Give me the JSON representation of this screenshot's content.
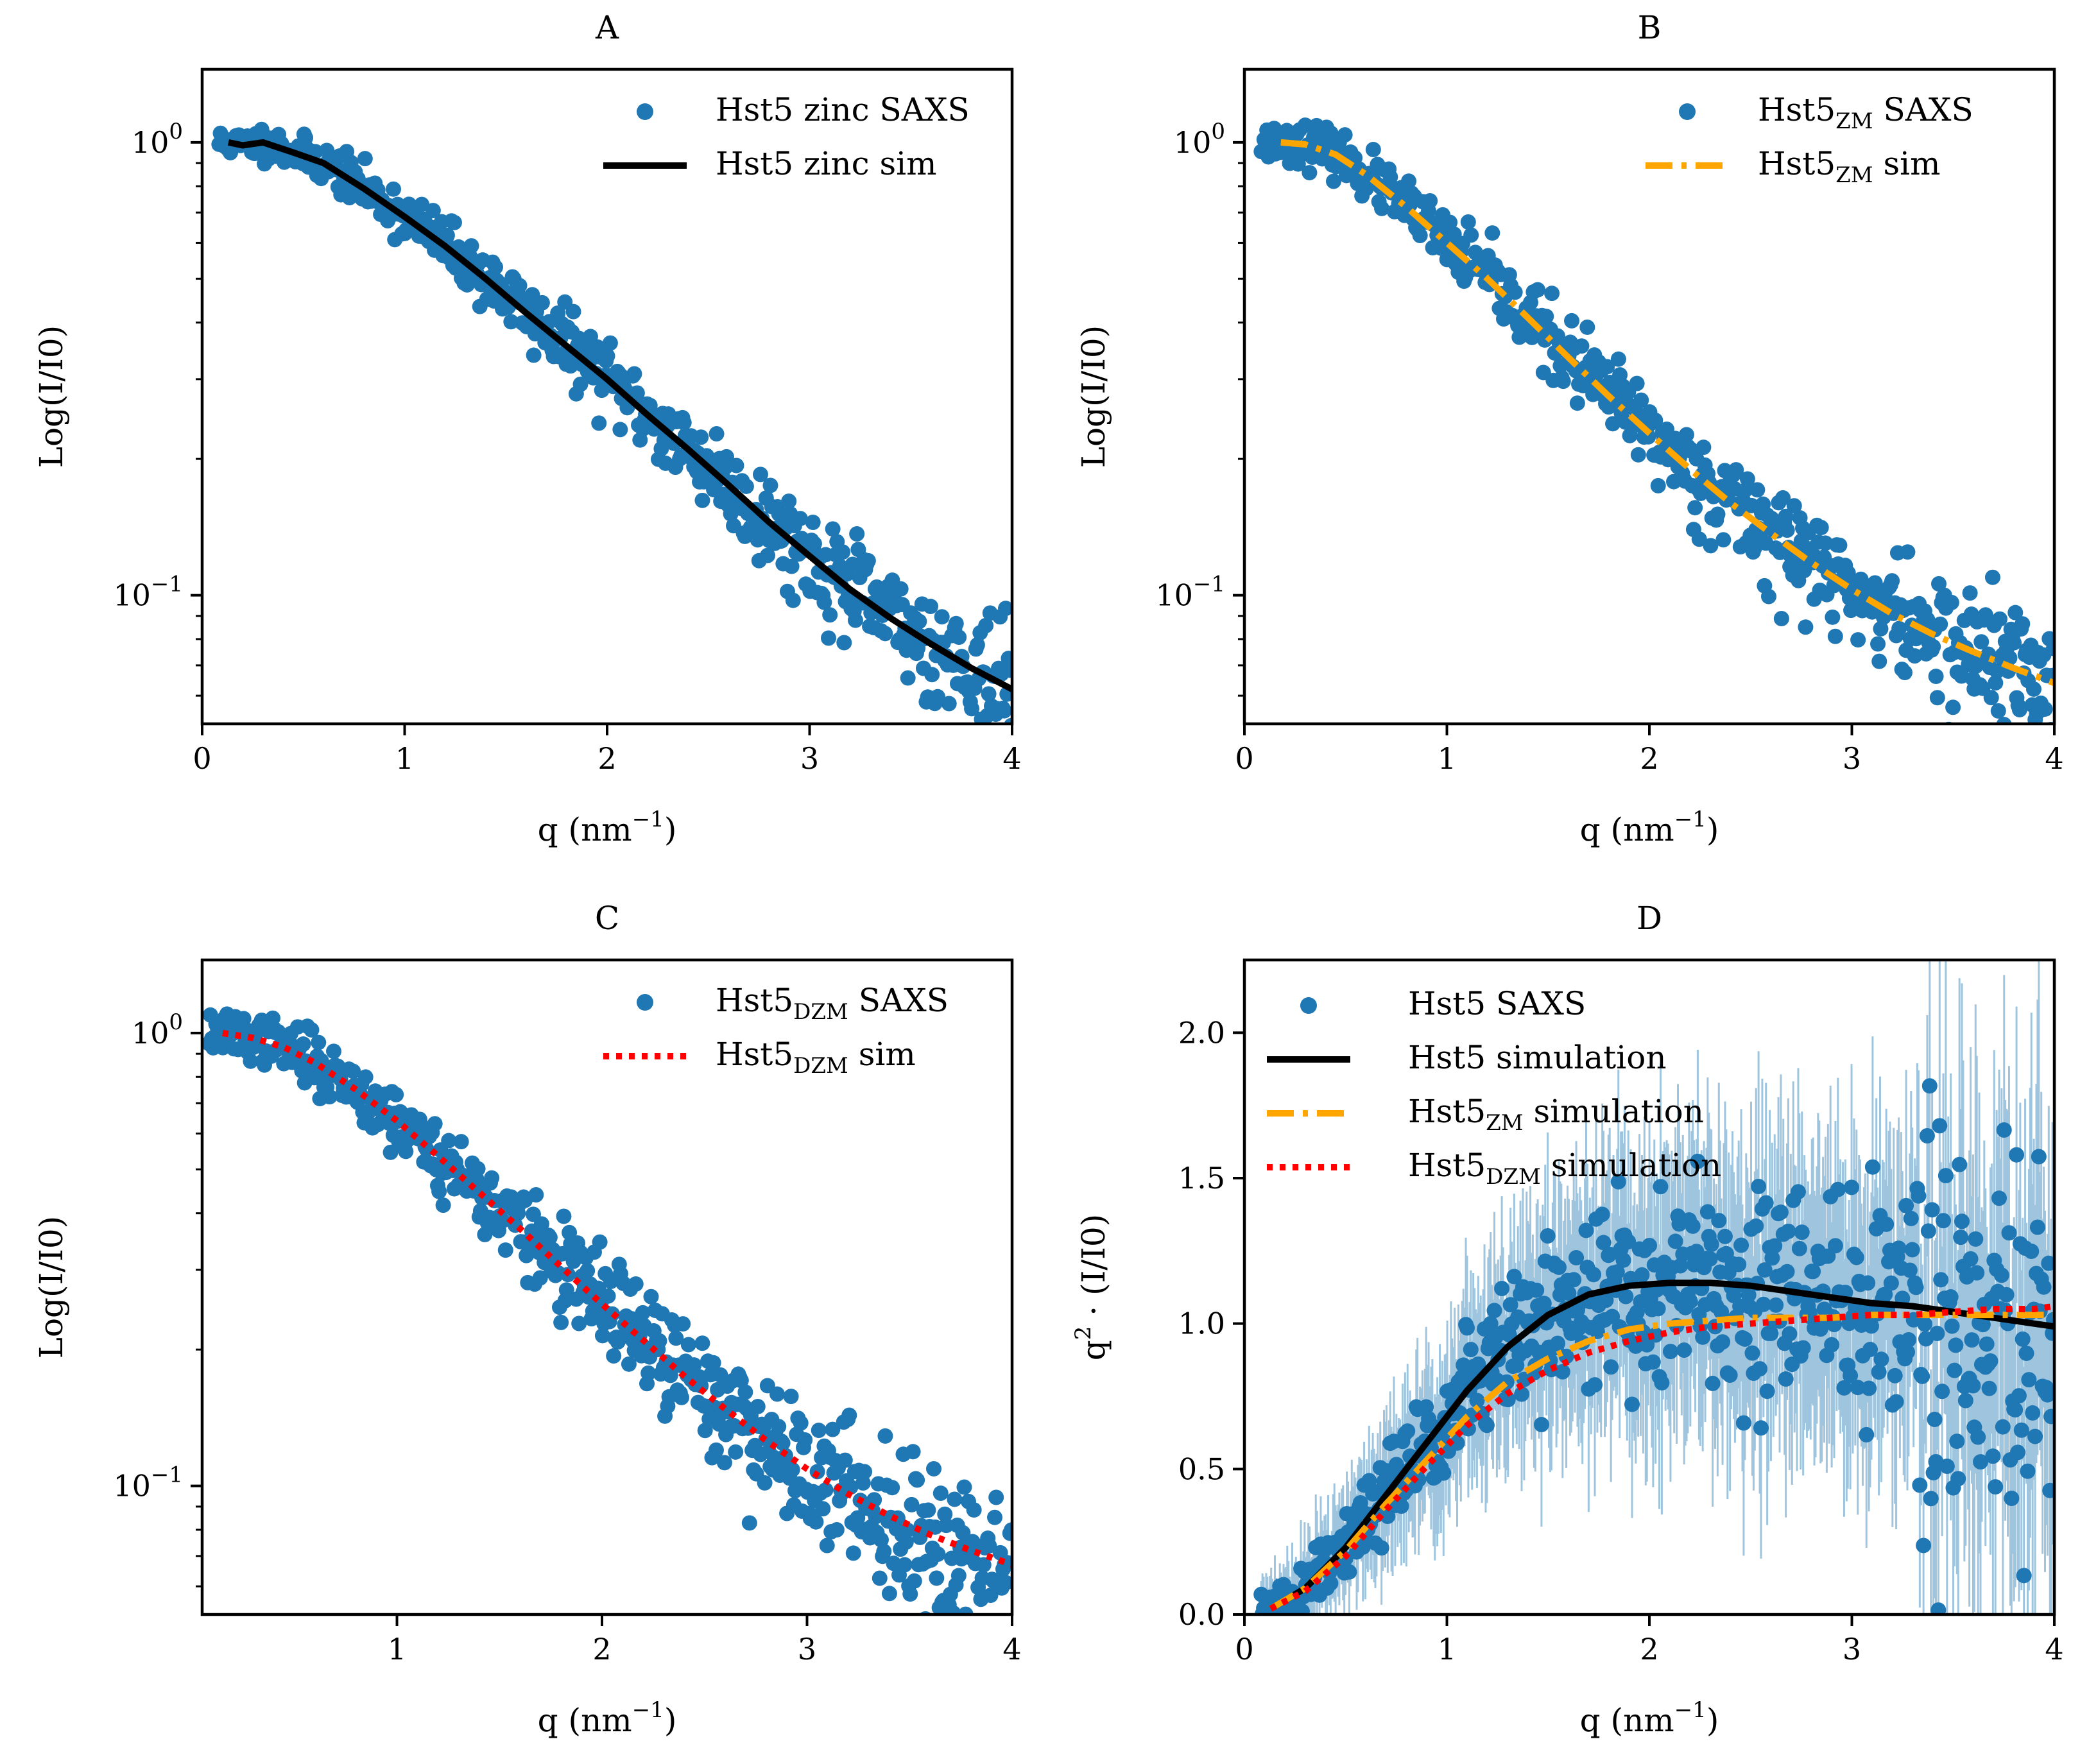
{
  "figure": {
    "panel_count": 4
  },
  "chart_data": [
    {
      "id": "A",
      "type": "scatter",
      "title": "A",
      "xlabel": "q (nm",
      "xlabel_sup": "−1",
      "xlabel_end": ")",
      "ylabel": "Log(I/I0)",
      "yscale": "log",
      "xlim": [
        0,
        4
      ],
      "ylim": [
        0.052,
        1.45
      ],
      "xticks": [
        0,
        1,
        2,
        3,
        4
      ],
      "xtick_labels": [
        "0",
        "1",
        "2",
        "3",
        "4"
      ],
      "yticks_major": [
        0.1,
        1
      ],
      "ytick_labels": [
        {
          "value": 1,
          "base": "10",
          "exp": "0"
        },
        {
          "value": 0.1,
          "base": "10",
          "exp": "−1"
        }
      ],
      "legend": [
        {
          "label": "Hst5 zinc SAXS",
          "kind": "scatter",
          "color": "#1f77b4"
        },
        {
          "label": "Hst5 zinc sim",
          "kind": "line",
          "color": "#000000",
          "dash": "solid"
        }
      ],
      "series": [
        {
          "name": "Hst5 zinc SAXS",
          "kind": "scatter",
          "color": "#1f77b4",
          "model": "zinc",
          "noise": 0.11,
          "seed": 11,
          "count": 560
        },
        {
          "name": "Hst5 zinc sim",
          "kind": "line",
          "color": "#000000",
          "dash": "solid",
          "model": "zinc",
          "x": [
            0.13,
            0.2,
            0.3,
            0.45,
            0.6,
            0.8,
            1.0,
            1.2,
            1.4,
            1.6,
            1.8,
            2.0,
            2.2,
            2.4,
            2.6,
            2.8,
            3.0,
            3.2,
            3.4,
            3.6,
            3.8,
            4.0
          ],
          "y": [
            1.0,
            0.985,
            1.0,
            0.95,
            0.9,
            0.79,
            0.685,
            0.59,
            0.5,
            0.42,
            0.355,
            0.3,
            0.25,
            0.21,
            0.175,
            0.145,
            0.122,
            0.103,
            0.089,
            0.078,
            0.069,
            0.062
          ]
        }
      ]
    },
    {
      "id": "B",
      "type": "scatter",
      "title": "B",
      "xlabel": "q (nm",
      "xlabel_sup": "−1",
      "xlabel_end": ")",
      "ylabel": "Log(I/I0)",
      "yscale": "log",
      "xlim": [
        0,
        4
      ],
      "ylim": [
        0.052,
        1.45
      ],
      "xticks": [
        0,
        1,
        2,
        3,
        4
      ],
      "xtick_labels": [
        "0",
        "1",
        "2",
        "3",
        "4"
      ],
      "yticks_major": [
        0.1,
        1
      ],
      "ytick_labels": [
        {
          "value": 1,
          "base": "10",
          "exp": "0"
        },
        {
          "value": 0.1,
          "base": "10",
          "exp": "−1"
        }
      ],
      "legend": [
        {
          "label": "Hst5",
          "sub": "ZM",
          "suffix": " SAXS",
          "kind": "scatter",
          "color": "#1f77b4"
        },
        {
          "label": "Hst5",
          "sub": "ZM",
          "suffix": " sim",
          "kind": "line",
          "color": "#ffa500",
          "dash": "dashdot"
        }
      ],
      "series": [
        {
          "name": "Hst5ZM SAXS",
          "kind": "scatter",
          "color": "#1f77b4",
          "model": "zm",
          "noise": 0.13,
          "seed": 23,
          "count": 560
        },
        {
          "name": "Hst5ZM sim",
          "kind": "line",
          "color": "#ffa500",
          "dash": "dashdot",
          "model": "zm",
          "x": [
            0.18,
            0.3,
            0.45,
            0.6,
            0.8,
            1.0,
            1.2,
            1.4,
            1.6,
            1.8,
            2.0,
            2.2,
            2.4,
            2.6,
            2.8,
            3.0,
            3.2,
            3.4,
            3.6,
            3.8,
            4.0
          ],
          "y": [
            1.0,
            0.99,
            0.94,
            0.85,
            0.72,
            0.6,
            0.5,
            0.41,
            0.335,
            0.275,
            0.228,
            0.19,
            0.16,
            0.137,
            0.118,
            0.103,
            0.091,
            0.082,
            0.075,
            0.069,
            0.064
          ]
        }
      ]
    },
    {
      "id": "C",
      "type": "scatter",
      "title": "C",
      "xlabel": "q (nm",
      "xlabel_sup": "−1",
      "xlabel_end": ")",
      "ylabel": "Log(I/I0)",
      "yscale": "log",
      "xlim": [
        0.05,
        4
      ],
      "ylim": [
        0.052,
        1.45
      ],
      "xticks": [
        1,
        2,
        3,
        4
      ],
      "xtick_labels": [
        "1",
        "2",
        "3",
        "4"
      ],
      "yticks_major": [
        0.1,
        1
      ],
      "ytick_labels": [
        {
          "value": 1,
          "base": "10",
          "exp": "0"
        },
        {
          "value": 0.1,
          "base": "10",
          "exp": "−1"
        }
      ],
      "legend": [
        {
          "label": "Hst5",
          "sub": "DZM",
          "suffix": " SAXS",
          "kind": "scatter",
          "color": "#1f77b4"
        },
        {
          "label": "Hst5",
          "sub": "DZM",
          "suffix": " sim",
          "kind": "line",
          "color": "#ff0000",
          "dash": "dotted"
        }
      ],
      "series": [
        {
          "name": "Hst5DZM SAXS",
          "kind": "scatter",
          "color": "#1f77b4",
          "model": "dzm",
          "noise": 0.15,
          "seed": 37,
          "count": 580
        },
        {
          "name": "Hst5DZM sim",
          "kind": "line",
          "color": "#ff0000",
          "dash": "dotted",
          "model": "dzm",
          "x": [
            0.15,
            0.3,
            0.45,
            0.6,
            0.8,
            1.0,
            1.2,
            1.4,
            1.6,
            1.8,
            2.0,
            2.2,
            2.4,
            2.6,
            2.8,
            3.0,
            3.2,
            3.4,
            3.6,
            3.8,
            4.0
          ],
          "y": [
            1.0,
            0.975,
            0.93,
            0.86,
            0.75,
            0.64,
            0.535,
            0.445,
            0.37,
            0.305,
            0.252,
            0.21,
            0.175,
            0.148,
            0.126,
            0.109,
            0.096,
            0.086,
            0.078,
            0.072,
            0.067
          ]
        }
      ]
    },
    {
      "id": "D",
      "type": "scatter",
      "title": "D",
      "xlabel": "q (nm",
      "xlabel_sup": "−1",
      "xlabel_end": ")",
      "ylabel": "q",
      "ylabel_sup": "2",
      "ylabel_end": " · (I/I0)",
      "yscale": "linear",
      "xlim": [
        0,
        4
      ],
      "ylim": [
        0,
        2.25
      ],
      "xticks": [
        0,
        1,
        2,
        3,
        4
      ],
      "xtick_labels": [
        "0",
        "1",
        "2",
        "3",
        "4"
      ],
      "yticks": [
        0.0,
        0.5,
        1.0,
        1.5,
        2.0
      ],
      "ytick_labels": [
        "0.0",
        "0.5",
        "1.0",
        "1.5",
        "2.0"
      ],
      "legend": [
        {
          "label": "Hst5 SAXS",
          "kind": "scatter",
          "color": "#1f77b4"
        },
        {
          "label": "Hst5 simulation",
          "kind": "line",
          "color": "#000000",
          "dash": "solid"
        },
        {
          "label": "Hst5",
          "sub": "ZM",
          "suffix": " simulation",
          "kind": "line",
          "color": "#ffa500",
          "dash": "dashdot"
        },
        {
          "label": "Hst5",
          "sub": "DZM",
          "suffix": " simulation",
          "kind": "line",
          "color": "#ff0000",
          "dash": "dotted"
        }
      ],
      "series": [
        {
          "name": "Hst5 SAXS",
          "kind": "scatter",
          "color": "#1f77b4",
          "model": "kratky",
          "noise": 0.12,
          "seed": 51,
          "count": 640,
          "error_band": true,
          "error_color": "#8fbbd9"
        },
        {
          "name": "Hst5 simulation",
          "kind": "line",
          "color": "#000000",
          "dash": "solid",
          "x": [
            0.13,
            0.3,
            0.5,
            0.7,
            0.9,
            1.1,
            1.3,
            1.5,
            1.7,
            1.9,
            2.1,
            2.3,
            2.5,
            2.7,
            2.9,
            3.1,
            3.3,
            3.5,
            3.7,
            3.9,
            4.0
          ],
          "y": [
            0.02,
            0.09,
            0.23,
            0.41,
            0.59,
            0.77,
            0.92,
            1.03,
            1.1,
            1.13,
            1.14,
            1.14,
            1.13,
            1.11,
            1.09,
            1.07,
            1.06,
            1.04,
            1.02,
            1.0,
            0.99
          ]
        },
        {
          "name": "Hst5ZM simulation",
          "kind": "line",
          "color": "#ffa500",
          "dash": "dashdot",
          "x": [
            0.13,
            0.3,
            0.5,
            0.7,
            0.9,
            1.1,
            1.3,
            1.5,
            1.7,
            1.9,
            2.1,
            2.3,
            2.5,
            2.7,
            2.9,
            3.1,
            3.3,
            3.5,
            3.7,
            3.9,
            4.0
          ],
          "y": [
            0.02,
            0.09,
            0.22,
            0.38,
            0.53,
            0.68,
            0.8,
            0.88,
            0.94,
            0.98,
            1.0,
            1.01,
            1.02,
            1.02,
            1.02,
            1.03,
            1.03,
            1.03,
            1.03,
            1.03,
            1.03
          ]
        },
        {
          "name": "Hst5DZM simulation",
          "kind": "line",
          "color": "#ff0000",
          "dash": "dotted",
          "x": [
            0.13,
            0.3,
            0.5,
            0.7,
            0.9,
            1.1,
            1.3,
            1.5,
            1.7,
            1.9,
            2.1,
            2.3,
            2.5,
            2.7,
            2.9,
            3.1,
            3.3,
            3.5,
            3.7,
            3.9,
            4.0
          ],
          "y": [
            0.02,
            0.08,
            0.2,
            0.36,
            0.51,
            0.65,
            0.76,
            0.84,
            0.9,
            0.94,
            0.97,
            0.99,
            1.0,
            1.01,
            1.02,
            1.03,
            1.03,
            1.04,
            1.05,
            1.05,
            1.06
          ]
        }
      ]
    }
  ]
}
